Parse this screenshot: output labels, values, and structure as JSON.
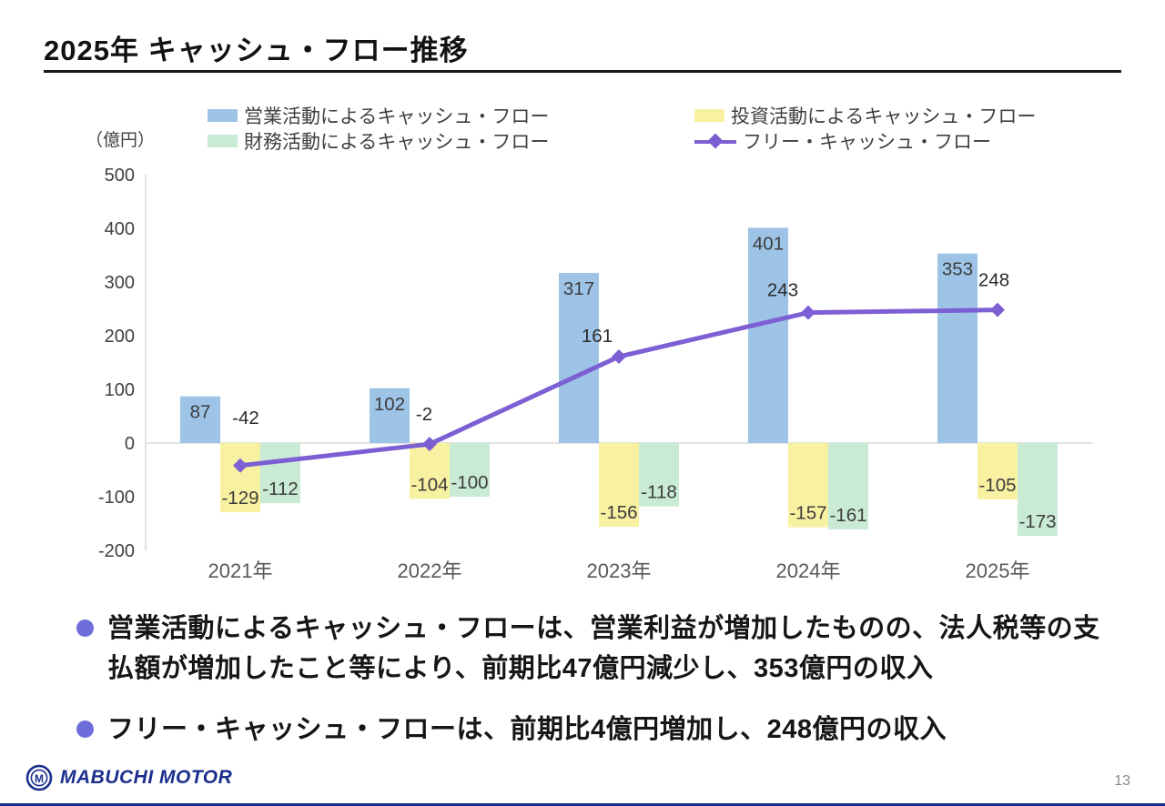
{
  "slide": {
    "title": "2025年 キャッシュ・フロー推移",
    "unit_label": "（億円）",
    "bullets": [
      {
        "text": "営業活動によるキャッシュ・フローは、営業利益が増加したものの、法人税等の支払額が増加したこと等により、前期比47億円減少し、353億円の収入"
      },
      {
        "text": "フリー・キャッシュ・フローは、前期比4億円増加し、248億円の収入"
      }
    ],
    "logo_text": "MABUCHI MOTOR",
    "page_number": "13"
  },
  "colors": {
    "operating": "#9DC3E6",
    "investing": "#F8F1A1",
    "financing": "#C9EAD4",
    "free": "#7D5FD4",
    "bullet": "#6E6EDB",
    "axis": "#D9D9D9",
    "tick_text": "#404040",
    "bar_label": "#3d3d3d",
    "navy": "#1c2e8c"
  },
  "chart_data": {
    "type": "bar+line",
    "categories": [
      "2021年",
      "2022年",
      "2023年",
      "2024年",
      "2025年"
    ],
    "series": [
      {
        "name": "営業活動によるキャッシュ・フロー",
        "type": "bar",
        "color_key": "operating",
        "values": [
          87,
          102,
          317,
          401,
          353
        ]
      },
      {
        "name": "投資活動によるキャッシュ・フロー",
        "type": "bar",
        "color_key": "investing",
        "values": [
          -129,
          -104,
          -156,
          -157,
          -105
        ]
      },
      {
        "name": "財務活動によるキャッシュ・フロー",
        "type": "bar",
        "color_key": "financing",
        "values": [
          -112,
          -100,
          -118,
          -161,
          -173
        ]
      },
      {
        "name": "フリー・キャッシュ・フロー",
        "type": "line",
        "color_key": "free",
        "values": [
          -42,
          -2,
          161,
          243,
          248
        ]
      }
    ],
    "ylabel": "（億円）",
    "ylim": [
      -200,
      500
    ],
    "ytick_step": 100,
    "grid": false,
    "legend_position": "top"
  }
}
